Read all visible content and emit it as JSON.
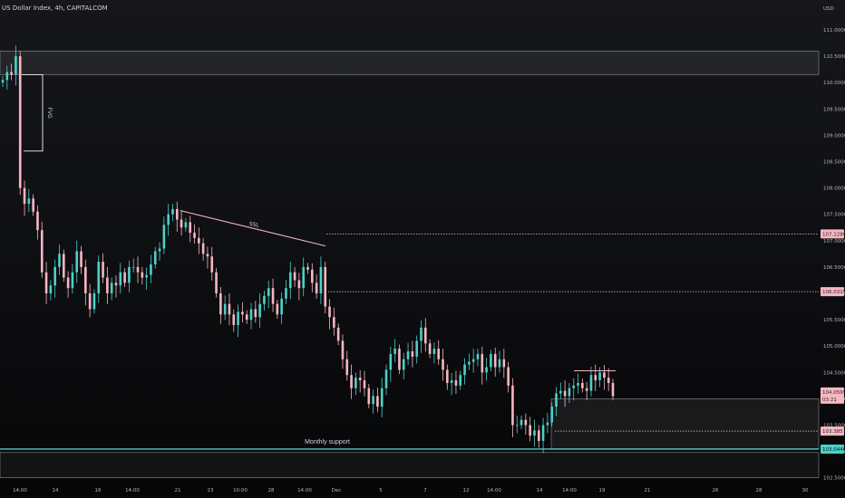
{
  "header": {
    "title": "US Dollar Index, 4h, CAPITALCOM"
  },
  "chart_data": {
    "type": "candlestick",
    "title": "US Dollar Index, 4h, CAPITALCOM",
    "ylim": [
      102.25,
      111.25
    ],
    "y_axis": {
      "unit": "USD",
      "ticks": [
        "111.0000",
        "110.5000",
        "110.0000",
        "109.5000",
        "109.0000",
        "108.5000",
        "108.0000",
        "107.5000",
        "107.0000",
        "106.5000",
        "106.0000",
        "105.5000",
        "105.0000",
        "104.5000",
        "104.0000",
        "103.5000",
        "103.0000",
        "102.5000"
      ]
    },
    "x_axis": {
      "ticks": [
        "14:00",
        "14",
        "16",
        "14:00",
        "21",
        "23",
        "10:00",
        "28",
        "14:00",
        "Dec",
        "5",
        "7",
        "12",
        "14:00",
        "14",
        "14:00",
        "19",
        "21",
        "26",
        "28",
        "30"
      ]
    },
    "price_tags": [
      {
        "label": "107.1280",
        "value": 107.128,
        "color": "#f7b6c2",
        "text_color": "#2a2a2a"
      },
      {
        "label": "106.0319",
        "value": 106.032,
        "color": "#f7b6c2",
        "text_color": "#2a2a2a"
      },
      {
        "label": "104.0599",
        "value": 104.06,
        "sub": "03:21",
        "color": "#f7b6c2",
        "text_color": "#2a2a2a"
      },
      {
        "label": "103.3857",
        "value": 103.386,
        "color": "#f7b6c2",
        "text_color": "#2a2a2a"
      },
      {
        "label": "103.0446",
        "value": 103.045,
        "color": "#4dd0c8",
        "text_color": "#0b1a1a"
      }
    ],
    "annotations": {
      "fvg_label": "FVG",
      "ssl_label": "SSL",
      "support_label": "Monthly support"
    },
    "zones": [
      {
        "name": "supply-zone",
        "from": 110.15,
        "to": 110.6
      },
      {
        "name": "lower-demand-zone",
        "from": 104.0,
        "to": 103.05
      },
      {
        "name": "monthly-support-band",
        "from": 102.98,
        "to": 102.5
      }
    ],
    "levels": [
      {
        "name": "ssl-level",
        "value": 107.128
      },
      {
        "name": "mid-level",
        "value": 106.032
      },
      {
        "name": "lower-level",
        "value": 103.386
      },
      {
        "name": "monthly-support-line",
        "value": 103.045
      }
    ],
    "colors": {
      "up": "#4dd0c8",
      "down": "#f7b6c2",
      "grid": "#2a2e39"
    },
    "close": [
      110.05,
      110.2,
      110.15,
      110.5,
      108.0,
      107.7,
      107.8,
      107.55,
      107.2,
      106.4,
      106.0,
      106.15,
      106.5,
      106.75,
      106.3,
      106.1,
      106.4,
      106.8,
      106.5,
      106.0,
      105.7,
      106.0,
      106.6,
      106.3,
      106.0,
      106.2,
      106.15,
      106.4,
      106.2,
      106.5,
      106.5,
      106.4,
      106.3,
      106.35,
      106.55,
      106.8,
      106.85,
      107.3,
      107.5,
      107.6,
      107.4,
      107.25,
      107.35,
      107.15,
      107.05,
      106.95,
      106.75,
      106.7,
      106.4,
      106.0,
      105.6,
      105.8,
      105.6,
      105.4,
      105.65,
      105.6,
      105.5,
      105.7,
      105.55,
      105.8,
      105.95,
      106.1,
      105.8,
      105.6,
      105.9,
      106.1,
      106.4,
      106.25,
      106.1,
      106.5,
      106.45,
      106.2,
      106.0,
      106.5,
      105.75,
      105.55,
      105.35,
      105.1,
      104.75,
      104.45,
      104.2,
      104.4,
      104.35,
      104.2,
      103.9,
      104.05,
      103.85,
      104.2,
      104.55,
      104.85,
      104.95,
      104.55,
      104.75,
      104.9,
      104.8,
      105.1,
      105.35,
      105.05,
      104.85,
      104.95,
      104.75,
      104.55,
      104.3,
      104.35,
      104.25,
      104.45,
      104.65,
      104.7,
      104.75,
      104.85,
      104.5,
      104.6,
      104.85,
      104.6,
      104.75,
      104.6,
      104.25,
      103.5,
      103.5,
      103.6,
      103.5,
      103.3,
      103.4,
      103.2,
      103.5,
      103.55,
      103.85,
      104.1,
      104.15,
      104.05,
      104.2,
      104.25,
      104.3,
      104.2,
      104.15,
      104.45,
      104.35,
      104.5,
      104.4,
      104.3,
      104.05
    ]
  }
}
